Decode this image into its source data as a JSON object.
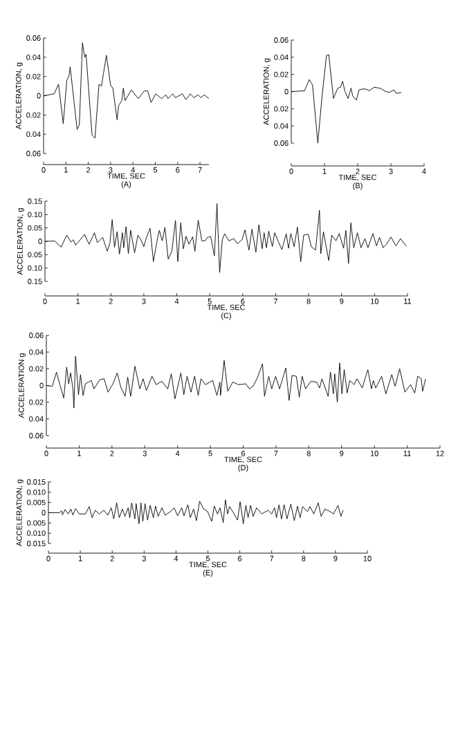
{
  "chart_data": [
    {
      "type": "line",
      "title": "(A)",
      "xlabel": "TIME, SEC",
      "ylabel": "ACCELERATION, g",
      "color": "#000000",
      "marker": "none",
      "xlim": [
        0,
        7.4
      ],
      "ylim": [
        -0.06,
        0.06
      ],
      "xticks": [
        0,
        1,
        2,
        3,
        4,
        5,
        6,
        7
      ],
      "yticks": [
        0.06,
        0.04,
        0.02,
        0,
        {
          "value": -0.02,
          "label": "0.02"
        },
        {
          "value": -0.04,
          "label": "0.04"
        },
        {
          "value": -0.06,
          "label": "0.06"
        }
      ],
      "x": [
        0,
        0.47,
        0.67,
        0.88,
        1.04,
        1.14,
        1.19,
        1.5,
        1.6,
        1.74,
        1.84,
        1.9,
        2.17,
        2.3,
        2.48,
        2.59,
        2.81,
        3.0,
        3.1,
        3.29,
        3.36,
        3.5,
        3.57,
        3.65,
        3.93,
        4.24,
        4.5,
        4.66,
        4.81,
        5.02,
        5.28,
        5.47,
        5.57,
        5.78,
        5.9,
        6.21,
        6.37,
        6.57,
        6.73,
        6.91,
        7.04,
        7.19,
        7.4
      ],
      "values": [
        0,
        0.002,
        0.012,
        -0.029,
        0.016,
        0.021,
        0.03,
        -0.035,
        -0.03,
        0.055,
        0.04,
        0.043,
        -0.041,
        -0.044,
        0.012,
        0.01,
        0.042,
        0.011,
        0.008,
        -0.025,
        -0.01,
        -0.005,
        0.008,
        -0.005,
        0.006,
        -0.003,
        0.005,
        0.005,
        -0.007,
        0.002,
        -0.003,
        0.001,
        -0.003,
        0.002,
        -0.002,
        0.002,
        -0.004,
        0.002,
        -0.002,
        0.001,
        -0.002,
        0.001,
        -0.003
      ]
    },
    {
      "type": "line",
      "title": "(B)",
      "xlabel": "TIME, SEC",
      "ylabel": "ACCELERATION, g",
      "color": "#000000",
      "marker": "none",
      "xlim": [
        0,
        4
      ],
      "ylim": [
        -0.06,
        0.06
      ],
      "xticks": [
        0,
        1,
        2,
        3,
        4
      ],
      "yticks": [
        0.06,
        0.04,
        0.02,
        0,
        {
          "value": -0.02,
          "label": "0.02"
        },
        {
          "value": -0.04,
          "label": "0.04"
        },
        {
          "value": -0.06,
          "label": "0.06"
        }
      ],
      "x": [
        0,
        0.4,
        0.54,
        0.64,
        0.8,
        0.92,
        1.06,
        1.13,
        1.27,
        1.4,
        1.48,
        1.55,
        1.61,
        1.71,
        1.8,
        1.85,
        1.96,
        2.04,
        2.15,
        2.25,
        2.34,
        2.5,
        2.67,
        2.85,
        2.95,
        3.09,
        3.16,
        3.31
      ],
      "values": [
        0,
        0.001,
        0.014,
        0.008,
        -0.06,
        -0.008,
        0.042,
        0.043,
        -0.008,
        0.004,
        0.005,
        0.012,
        0.001,
        -0.008,
        0.004,
        -0.005,
        -0.01,
        0.002,
        0.003,
        0.003,
        0.001,
        0.005,
        0.004,
        0,
        -0.001,
        0.002,
        -0.002,
        -0.001
      ]
    },
    {
      "type": "line",
      "title": "(C)",
      "xlabel": "TIME, SEC",
      "ylabel": "ACCELERATION, g",
      "color": "#000000",
      "marker": "none",
      "xlim": [
        0,
        11
      ],
      "ylim": [
        -0.15,
        0.15
      ],
      "xticks": [
        0,
        1,
        2,
        3,
        4,
        5,
        6,
        7,
        8,
        9,
        10,
        11
      ],
      "yticks": [
        {
          "value": 0.15,
          "label": "0.15"
        },
        {
          "value": 0.1,
          "label": "0.10"
        },
        {
          "value": 0.05,
          "label": "0.05"
        },
        0,
        {
          "value": -0.05,
          "label": "0.05"
        },
        {
          "value": -0.1,
          "label": "0.10"
        },
        {
          "value": -0.15,
          "label": "0.15"
        }
      ],
      "x": [
        0,
        0.3,
        0.49,
        0.66,
        0.79,
        0.86,
        0.93,
        1.07,
        1.2,
        1.34,
        1.5,
        1.59,
        1.75,
        1.89,
        1.97,
        2.04,
        2.11,
        2.19,
        2.26,
        2.35,
        2.39,
        2.46,
        2.53,
        2.6,
        2.72,
        2.82,
        2.91,
        3.0,
        3.08,
        3.19,
        3.29,
        3.42,
        3.47,
        3.56,
        3.64,
        3.74,
        3.85,
        3.96,
        4.03,
        4.12,
        4.2,
        4.28,
        4.37,
        4.48,
        4.55,
        4.65,
        4.76,
        4.86,
        4.93,
        5.03,
        5.14,
        5.22,
        5.3,
        5.38,
        5.45,
        5.58,
        5.73,
        5.84,
        5.98,
        6.07,
        6.19,
        6.28,
        6.4,
        6.49,
        6.59,
        6.65,
        6.72,
        6.79,
        6.9,
        6.97,
        7.07,
        7.19,
        7.32,
        7.39,
        7.46,
        7.56,
        7.66,
        7.76,
        7.85,
        7.92,
        7.99,
        8.08,
        8.21,
        8.33,
        8.37,
        8.45,
        8.61,
        8.7,
        8.83,
        8.93,
        9.06,
        9.13,
        9.21,
        9.28,
        9.37,
        9.48,
        9.59,
        9.71,
        9.8,
        9.95,
        10.06,
        10.15,
        10.26,
        10.36,
        10.5,
        10.65,
        10.79,
        10.96
      ],
      "values": [
        0,
        0.001,
        -0.022,
        0.023,
        -0.003,
        0.006,
        -0.014,
        0.006,
        0.026,
        -0.011,
        0.032,
        -0.005,
        0.015,
        -0.037,
        -0.007,
        0.081,
        -0.022,
        0.036,
        -0.048,
        0.032,
        -0.024,
        0.055,
        -0.046,
        0.041,
        -0.043,
        0.023,
        0.006,
        -0.02,
        0.015,
        0.049,
        -0.076,
        0.015,
        0.041,
        0.002,
        0.052,
        -0.067,
        -0.037,
        0.078,
        -0.076,
        0.069,
        -0.028,
        0.019,
        -0.011,
        0.017,
        -0.037,
        0.079,
        0.002,
        0.002,
        0.015,
        0.017,
        -0.054,
        0.141,
        -0.117,
        0.006,
        0.028,
        0.002,
        0.01,
        -0.009,
        0.006,
        0.043,
        -0.033,
        0.045,
        -0.041,
        0.062,
        -0.028,
        0.032,
        -0.024,
        0.038,
        -0.02,
        0.032,
        0.002,
        -0.031,
        0.028,
        -0.026,
        0.029,
        -0.02,
        0.053,
        -0.076,
        0.023,
        0.025,
        0.026,
        -0.02,
        -0.033,
        0.116,
        -0.046,
        0.036,
        -0.072,
        0.023,
        0.002,
        0.029,
        -0.026,
        0.041,
        -0.083,
        0.069,
        -0.024,
        0.032,
        -0.024,
        0.01,
        -0.024,
        0.029,
        -0.017,
        0.015,
        -0.024,
        -0.011,
        0.016,
        -0.017,
        0.01,
        -0.018
      ]
    },
    {
      "type": "line",
      "title": "(D)",
      "xlabel": "TIME, SEC",
      "ylabel": "ACCELERATION g",
      "color": "#000000",
      "marker": "none",
      "xlim": [
        0,
        12
      ],
      "ylim": [
        -0.06,
        0.06
      ],
      "xticks": [
        0,
        1,
        2,
        3,
        4,
        5,
        6,
        7,
        8,
        9,
        10,
        11,
        12
      ],
      "yticks": [
        0.06,
        0.04,
        0.02,
        0,
        {
          "value": -0.02,
          "label": "0.02"
        },
        {
          "value": -0.04,
          "label": "0.04"
        },
        {
          "value": -0.06,
          "label": "0.06"
        }
      ],
      "x": [
        0,
        0.18,
        0.31,
        0.41,
        0.53,
        0.62,
        0.68,
        0.74,
        0.81,
        0.84,
        0.89,
        0.98,
        1.04,
        1.12,
        1.19,
        1.37,
        1.45,
        1.63,
        1.76,
        1.88,
        2.03,
        2.16,
        2.27,
        2.4,
        2.48,
        2.57,
        2.7,
        2.85,
        2.95,
        3.05,
        3.22,
        3.35,
        3.52,
        3.7,
        3.81,
        3.92,
        4.1,
        4.19,
        4.29,
        4.41,
        4.52,
        4.63,
        4.71,
        4.85,
        5.07,
        5.2,
        5.29,
        5.31,
        5.42,
        5.53,
        5.68,
        5.86,
        6.08,
        6.19,
        6.3,
        6.43,
        6.59,
        6.65,
        6.78,
        6.87,
        6.99,
        7.11,
        7.3,
        7.4,
        7.49,
        7.62,
        7.71,
        7.8,
        7.9,
        8.06,
        8.24,
        8.33,
        8.4,
        8.59,
        8.66,
        8.75,
        8.79,
        8.87,
        8.94,
        9.01,
        9.08,
        9.17,
        9.25,
        9.38,
        9.47,
        9.63,
        9.8,
        9.91,
        9.97,
        10.04,
        10.22,
        10.35,
        10.53,
        10.63,
        10.77,
        10.93,
        11.1,
        11.23,
        11.32,
        11.43,
        11.47,
        11.56
      ],
      "values": [
        0,
        -0.001,
        0.016,
        0.001,
        -0.015,
        0.022,
        0.002,
        0.015,
        -0.004,
        -0.027,
        0.035,
        -0.011,
        0.013,
        -0.012,
        0.002,
        0.006,
        -0.004,
        0.007,
        0.008,
        -0.008,
        0.002,
        0.015,
        -0.002,
        -0.013,
        0.01,
        -0.013,
        0.023,
        -0.004,
        0.008,
        -0.006,
        0.011,
        0.001,
        0.005,
        -0.004,
        0.014,
        -0.016,
        0.015,
        -0.011,
        0.011,
        -0.008,
        0.011,
        -0.012,
        0.008,
        0.001,
        0.006,
        -0.012,
        0.004,
        -0.012,
        0.03,
        -0.007,
        0.004,
        0.001,
        0.002,
        -0.004,
        -0.001,
        0.009,
        0.026,
        -0.013,
        0.011,
        -0.004,
        0.011,
        -0.004,
        0.021,
        -0.018,
        0.012,
        0.011,
        -0.014,
        0.011,
        -0.004,
        0.005,
        0.004,
        -0.003,
        0.008,
        -0.013,
        0.016,
        -0.01,
        0.014,
        -0.02,
        0.027,
        -0.01,
        0.019,
        -0.009,
        0.006,
        0.001,
        0.008,
        -0.003,
        0.019,
        -0.004,
        0.006,
        -0.003,
        0.011,
        -0.01,
        0.013,
        -0.001,
        0.02,
        -0.008,
        0.001,
        -0.009,
        0.011,
        0.008,
        -0.007,
        0.008
      ]
    },
    {
      "type": "line",
      "title": "(E)",
      "xlabel": "TIME, SEC",
      "ylabel": "ACCELERATION, g",
      "color": "#000000",
      "marker": "none",
      "xlim": [
        0,
        10
      ],
      "ylim": [
        -0.015,
        0.015
      ],
      "xticks": [
        0,
        1,
        2,
        3,
        4,
        5,
        6,
        7,
        8,
        9,
        10
      ],
      "yticks": [
        0.015,
        {
          "value": 0.01,
          "label": "0.010"
        },
        0.005,
        0,
        {
          "value": -0.005,
          "label": "0.005"
        },
        {
          "value": -0.01,
          "label": "0.010"
        },
        {
          "value": -0.015,
          "label": "0.015"
        }
      ],
      "x": [
        0,
        0.35,
        0.41,
        0.44,
        0.52,
        0.62,
        0.7,
        0.77,
        0.85,
        0.97,
        1.16,
        1.28,
        1.37,
        1.47,
        1.59,
        1.74,
        1.86,
        1.97,
        2.05,
        2.14,
        2.22,
        2.32,
        2.4,
        2.5,
        2.55,
        2.61,
        2.71,
        2.75,
        2.84,
        2.9,
        2.96,
        3.03,
        3.11,
        3.19,
        3.29,
        3.36,
        3.44,
        3.56,
        3.66,
        3.83,
        3.94,
        4.05,
        4.18,
        4.25,
        4.37,
        4.45,
        4.55,
        4.64,
        4.74,
        4.87,
        4.99,
        5.12,
        5.2,
        5.3,
        5.38,
        5.48,
        5.55,
        5.62,
        5.68,
        5.8,
        5.93,
        6.01,
        6.11,
        6.19,
        6.26,
        6.34,
        6.42,
        6.53,
        6.69,
        6.88,
        7.0,
        7.09,
        7.15,
        7.23,
        7.31,
        7.39,
        7.48,
        7.6,
        7.71,
        7.81,
        7.89,
        7.97,
        8.12,
        8.2,
        8.32,
        8.46,
        8.55,
        8.67,
        8.83,
        8.94,
        9.08,
        9.17,
        9.24
      ],
      "values": [
        0,
        0,
        0.001,
        -0.001,
        0.0015,
        -0.0006,
        0.0018,
        -0.0012,
        0.002,
        -0.0006,
        -0.0006,
        0.003,
        -0.0024,
        0.0012,
        -0.0006,
        0.0012,
        -0.0012,
        0.0024,
        -0.003,
        0.0048,
        -0.0024,
        0.0018,
        -0.0018,
        0.0024,
        -0.0024,
        0.0048,
        -0.003,
        0.0044,
        -0.0054,
        0.0048,
        -0.0042,
        0.0044,
        -0.0036,
        0.0036,
        -0.0024,
        0.0032,
        -0.0018,
        0.0024,
        -0.0012,
        0.0006,
        0.0024,
        -0.0015,
        0.0024,
        -0.0015,
        0.0039,
        -0.0024,
        0.0018,
        -0.0039,
        0.0056,
        0.0018,
        0.0006,
        -0.0042,
        0.0032,
        -0.0006,
        0.0024,
        -0.0048,
        0.0063,
        -0.0006,
        0.003,
        0,
        -0.0036,
        0.0054,
        -0.0054,
        0.0036,
        -0.0024,
        0.0036,
        -0.0018,
        0.0024,
        -0.0006,
        0.0012,
        -0.0006,
        0.0024,
        -0.0024,
        0.0039,
        -0.003,
        0.0039,
        -0.003,
        0.0042,
        -0.0039,
        0.0032,
        -0.0024,
        0.003,
        0.0006,
        0.003,
        -0.0006,
        0.0048,
        -0.0018,
        0.0018,
        0.0006,
        -0.0006,
        0.0036,
        -0.0018,
        0.0012
      ]
    }
  ]
}
